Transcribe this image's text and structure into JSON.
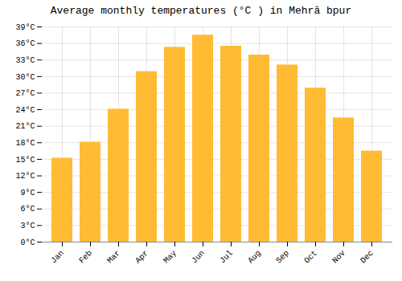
{
  "chart_data": {
    "type": "bar",
    "title": "Average monthly temperatures (°C ) in Mehrā bpur",
    "categories": [
      "Jan",
      "Feb",
      "Mar",
      "Apr",
      "May",
      "Jun",
      "Jul",
      "Aug",
      "Sep",
      "Oct",
      "Nov",
      "Dec"
    ],
    "values": [
      15.2,
      18.1,
      24.1,
      30.9,
      35.3,
      37.5,
      35.5,
      33.9,
      32.1,
      27.9,
      22.5,
      16.5
    ],
    "color": "#FFBB33",
    "ylim": [
      0,
      39
    ],
    "yticks": [
      {
        "value": 0,
        "label": "0°C"
      },
      {
        "value": 3,
        "label": "3°C"
      },
      {
        "value": 6,
        "label": "6°C"
      },
      {
        "value": 9,
        "label": "9°C"
      },
      {
        "value": 12,
        "label": "12°C"
      },
      {
        "value": 15,
        "label": "15°C"
      },
      {
        "value": 18,
        "label": "18°C"
      },
      {
        "value": 21,
        "label": "21°C"
      },
      {
        "value": 24,
        "label": "24°C"
      },
      {
        "value": 27,
        "label": "27°C"
      },
      {
        "value": 30,
        "label": "30°C"
      },
      {
        "value": 33,
        "label": "33°C"
      },
      {
        "value": 36,
        "label": "36°C"
      },
      {
        "value": 39,
        "label": "39°C"
      }
    ],
    "grid": true
  }
}
